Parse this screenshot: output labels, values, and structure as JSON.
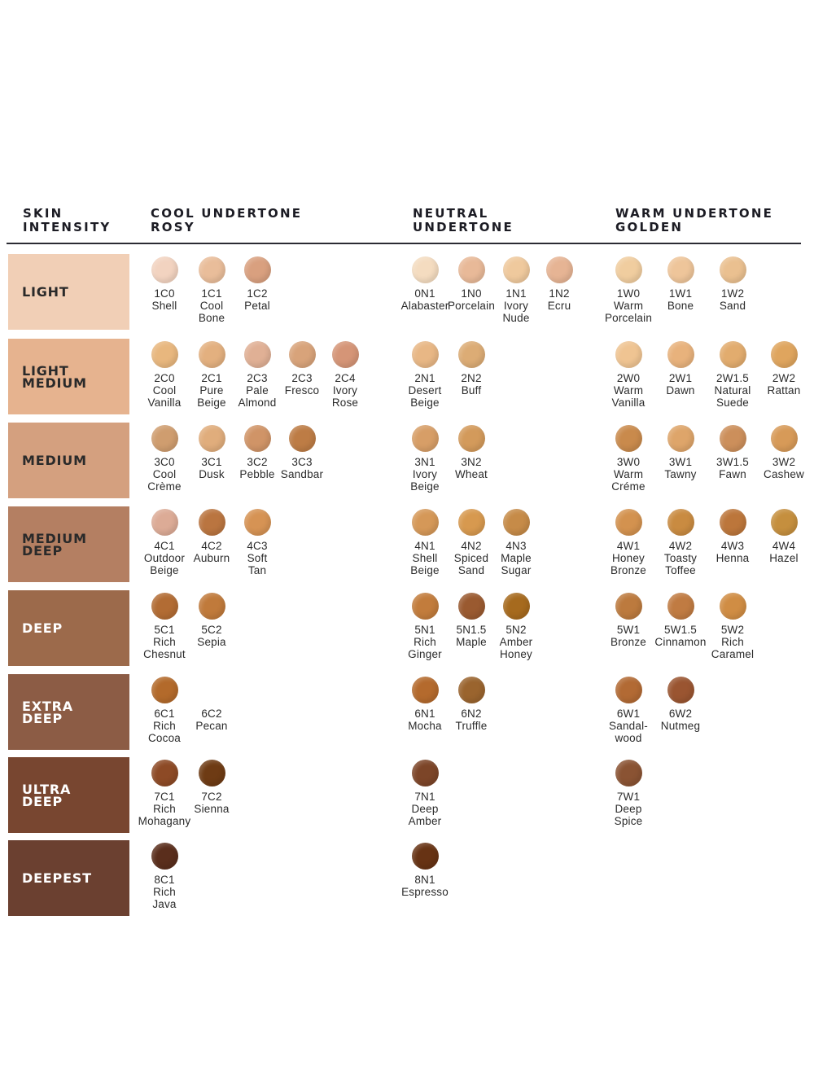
{
  "headers": {
    "skin_intensity": "SKIN\nINTENSITY",
    "cool": "COOL UNDERTONE\nROSY",
    "neutral": "NEUTRAL\nUNDERTONE",
    "warm": "WARM UNDERTONE\nGOLDEN"
  },
  "bands": [
    {
      "label": "LIGHT",
      "color": "#f1cfb6",
      "text_color": "#2a2a2a"
    },
    {
      "label": "LIGHT\nMEDIUM",
      "color": "#e6b38f",
      "text_color": "#2a2a2a"
    },
    {
      "label": "MEDIUM",
      "color": "#d4a07f",
      "text_color": "#2a2a2a"
    },
    {
      "label": "MEDIUM\nDEEP",
      "color": "#b47f62",
      "text_color": "#2a2a2a"
    },
    {
      "label": "DEEP",
      "color": "#9c6a4b",
      "text_color": "#ffffff"
    },
    {
      "label": "EXTRA\nDEEP",
      "color": "#8c5c45",
      "text_color": "#ffffff"
    },
    {
      "label": "ULTRA\nDEEP",
      "color": "#784630",
      "text_color": "#ffffff"
    },
    {
      "label": "DEEPEST",
      "color": "#6b4030",
      "text_color": "#ffffff"
    }
  ],
  "shades": [
    {
      "row": 0,
      "col": "c1",
      "code": "1C0",
      "name": "Shell",
      "color": "#f2d3c0"
    },
    {
      "row": 0,
      "col": "c2",
      "code": "1C1",
      "name": "Cool\nBone",
      "color": "#e9bd9a"
    },
    {
      "row": 0,
      "col": "c3",
      "code": "1C2",
      "name": "Petal",
      "color": "#d9a07f"
    },
    {
      "row": 0,
      "col": "n1",
      "code": "0N1",
      "name": "Alabaster",
      "color": "#f4dcc0"
    },
    {
      "row": 0,
      "col": "n2",
      "code": "1N0",
      "name": "Porcelain",
      "color": "#e8b998"
    },
    {
      "row": 0,
      "col": "n3",
      "code": "1N1",
      "name": "Ivory\nNude",
      "color": "#efc99d"
    },
    {
      "row": 0,
      "col": "n4",
      "code": "1N2",
      "name": "Ecru",
      "color": "#e6b494"
    },
    {
      "row": 0,
      "col": "w1",
      "code": "1W0",
      "name": "Warm\nPorcelain",
      "color": "#f0cd9f"
    },
    {
      "row": 0,
      "col": "w2",
      "code": "1W1",
      "name": "Bone",
      "color": "#eec59a"
    },
    {
      "row": 0,
      "col": "w3",
      "code": "1W2",
      "name": "Sand",
      "color": "#eac090"
    },
    {
      "row": 1,
      "col": "c1",
      "code": "2C0",
      "name": "Cool\nVanilla",
      "color": "#e8b77e"
    },
    {
      "row": 1,
      "col": "c2",
      "code": "2C1",
      "name": "Pure\nBeige",
      "color": "#e3b07f"
    },
    {
      "row": 1,
      "col": "c3",
      "code": "2C3",
      "name": "Pale\nAlmond",
      "color": "#e0b095"
    },
    {
      "row": 1,
      "col": "c4",
      "code": "2C3",
      "name": "Fresco",
      "color": "#d8a37a"
    },
    {
      "row": 1,
      "col": "c5",
      "code": "2C4",
      "name": "Ivory\nRose",
      "color": "#d59577"
    },
    {
      "row": 1,
      "col": "n1",
      "code": "2N1",
      "name": "Desert\nBeige",
      "color": "#e8b785"
    },
    {
      "row": 1,
      "col": "n2",
      "code": "2N2",
      "name": "Buff",
      "color": "#dcac75"
    },
    {
      "row": 1,
      "col": "w1",
      "code": "2W0",
      "name": "Warm\nVanilla",
      "color": "#efc492"
    },
    {
      "row": 1,
      "col": "w2",
      "code": "2W1",
      "name": "Dawn",
      "color": "#e8b27c"
    },
    {
      "row": 1,
      "col": "w3",
      "code": "2W1.5",
      "name": "Natural\nSuede",
      "color": "#e2ac6e"
    },
    {
      "row": 1,
      "col": "w4",
      "code": "2W2",
      "name": "Rattan",
      "color": "#dfa55e"
    },
    {
      "row": 2,
      "col": "c1",
      "code": "3C0",
      "name": "Cool\nCrème",
      "color": "#cf9d6f"
    },
    {
      "row": 2,
      "col": "c2",
      "code": "3C1",
      "name": "Dusk",
      "color": "#e0ad7c"
    },
    {
      "row": 2,
      "col": "c3",
      "code": "3C2",
      "name": "Pebble",
      "color": "#d09467"
    },
    {
      "row": 2,
      "col": "c4",
      "code": "3C3",
      "name": "Sandbar",
      "color": "#bd7c45"
    },
    {
      "row": 2,
      "col": "n1",
      "code": "3N1",
      "name": "Ivory\nBeige",
      "color": "#d79e67"
    },
    {
      "row": 2,
      "col": "n2",
      "code": "3N2",
      "name": "Wheat",
      "color": "#d39a5b"
    },
    {
      "row": 2,
      "col": "w1",
      "code": "3W0",
      "name": "Warm\nCréme",
      "color": "#c98a4c"
    },
    {
      "row": 2,
      "col": "w2",
      "code": "3W1",
      "name": "Tawny",
      "color": "#dea56a"
    },
    {
      "row": 2,
      "col": "w3",
      "code": "3W1.5",
      "name": "Fawn",
      "color": "#cc8f5b"
    },
    {
      "row": 2,
      "col": "w4",
      "code": "3W2",
      "name": "Cashew",
      "color": "#d79a58"
    },
    {
      "row": 3,
      "col": "c1",
      "code": "4C1",
      "name": "Outdoor\nBeige",
      "color": "#dcab96"
    },
    {
      "row": 3,
      "col": "c2",
      "code": "4C2",
      "name": "Auburn",
      "color": "#ba7540"
    },
    {
      "row": 3,
      "col": "c3",
      "code": "4C3",
      "name": "Soft\nTan",
      "color": "#d69354"
    },
    {
      "row": 3,
      "col": "n1",
      "code": "4N1",
      "name": "Shell\nBeige",
      "color": "#d59858"
    },
    {
      "row": 3,
      "col": "n2",
      "code": "4N2",
      "name": "Spiced\nSand",
      "color": "#d7994f"
    },
    {
      "row": 3,
      "col": "n3",
      "code": "4N3",
      "name": "Maple\nSugar",
      "color": "#c68b48"
    },
    {
      "row": 3,
      "col": "w1",
      "code": "4W1",
      "name": "Honey\nBronze",
      "color": "#d3924f"
    },
    {
      "row": 3,
      "col": "w2",
      "code": "4W2",
      "name": "Toasty\nToffee",
      "color": "#c98b41"
    },
    {
      "row": 3,
      "col": "w3",
      "code": "4W3",
      "name": "Henna",
      "color": "#bc763b"
    },
    {
      "row": 3,
      "col": "w4",
      "code": "4W4",
      "name": "Hazel",
      "color": "#c58f3e"
    },
    {
      "row": 4,
      "col": "c1",
      "code": "5C1",
      "name": "Rich\nChesnut",
      "color": "#b26c34"
    },
    {
      "row": 4,
      "col": "c2",
      "code": "5C2",
      "name": "Sepia",
      "color": "#c07a3b"
    },
    {
      "row": 4,
      "col": "n1",
      "code": "5N1",
      "name": "Rich\nGinger",
      "color": "#c27c3c"
    },
    {
      "row": 4,
      "col": "n2",
      "code": "5N1.5",
      "name": "Maple",
      "color": "#9a5a30"
    },
    {
      "row": 4,
      "col": "n3",
      "code": "5N2",
      "name": "Amber\nHoney",
      "color": "#a66a1e"
    },
    {
      "row": 4,
      "col": "w1",
      "code": "5W1",
      "name": "Bronze",
      "color": "#bc7a3e"
    },
    {
      "row": 4,
      "col": "w2",
      "code": "5W1.5",
      "name": "Cinnamon",
      "color": "#c07b42"
    },
    {
      "row": 4,
      "col": "w3",
      "code": "5W2",
      "name": "Rich\nCaramel",
      "color": "#d08d44"
    },
    {
      "row": 5,
      "col": "c1",
      "code": "6C1",
      "name": "Rich\nCocoa",
      "color": "#b36a2b"
    },
    {
      "row": 5,
      "col": "c2",
      "code": "6C2",
      "name": "Pecan",
      "color": "#ffffff"
    },
    {
      "row": 5,
      "col": "n1",
      "code": "6N1",
      "name": "Mocha",
      "color": "#b46a2d"
    },
    {
      "row": 5,
      "col": "n2",
      "code": "6N2",
      "name": "Truffle",
      "color": "#9a642e"
    },
    {
      "row": 5,
      "col": "w1",
      "code": "6W1",
      "name": "Sandal-\nwood",
      "color": "#b26a34"
    },
    {
      "row": 5,
      "col": "w2",
      "code": "6W2",
      "name": "Nutmeg",
      "color": "#9a5531"
    },
    {
      "row": 6,
      "col": "c1",
      "code": "7C1",
      "name": "Rich\nMohagany",
      "color": "#8d4a26"
    },
    {
      "row": 6,
      "col": "c2",
      "code": "7C2",
      "name": "Sienna",
      "color": "#6e3b14"
    },
    {
      "row": 6,
      "col": "n1",
      "code": "7N1",
      "name": "Deep\nAmber",
      "color": "#7c4528"
    },
    {
      "row": 6,
      "col": "w1",
      "code": "7W1",
      "name": "Deep\nSpice",
      "color": "#8a5333"
    },
    {
      "row": 7,
      "col": "c1",
      "code": "8C1",
      "name": "Rich\nJava",
      "color": "#5a2e1c"
    },
    {
      "row": 7,
      "col": "n1",
      "code": "8N1",
      "name": "Espresso",
      "color": "#673314"
    }
  ]
}
